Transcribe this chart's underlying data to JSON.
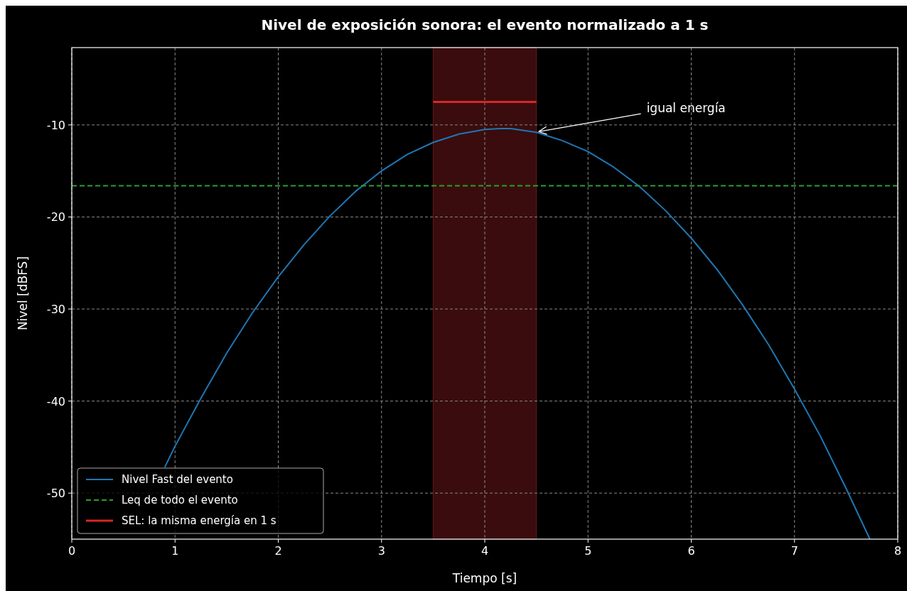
{
  "chart_data": {
    "type": "line",
    "title": "Nivel de exposición sonora: el evento normalizado a 1 s",
    "xlabel": "Tiempo [s]",
    "ylabel": "Nivel [dBFS]",
    "xlim": [
      0,
      8
    ],
    "xticks": [
      0,
      1,
      2,
      3,
      4,
      5,
      6,
      7,
      8
    ],
    "ylim": [
      -55,
      -1.6
    ],
    "yticks": [
      -50,
      -40,
      -30,
      -20,
      -10
    ],
    "grid": true,
    "legend": "bottom left",
    "series": [
      {
        "name": "Nivel Fast del evento",
        "color": "#1f77b4",
        "line_style": "solid",
        "x": [
          0.9,
          1.0,
          1.25,
          1.5,
          1.75,
          2.0,
          2.25,
          2.5,
          2.75,
          3.0,
          3.25,
          3.5,
          3.75,
          4.0,
          4.15,
          4.25,
          4.5,
          4.75,
          5.0,
          5.25,
          5.5,
          5.75,
          6.0,
          6.25,
          6.5,
          6.75,
          7.0,
          7.25,
          7.5,
          7.73
        ],
        "values": [
          -47.2,
          -44.9,
          -39.7,
          -34.8,
          -30.4,
          -26.5,
          -23.0,
          -19.9,
          -17.2,
          -15.0,
          -13.2,
          -11.9,
          -11.0,
          -10.5,
          -10.4,
          -10.4,
          -10.8,
          -11.7,
          -12.9,
          -14.6,
          -16.7,
          -19.3,
          -22.3,
          -25.7,
          -29.6,
          -33.9,
          -38.7,
          -43.8,
          -49.5,
          -55.0
        ]
      },
      {
        "name": "Leq de todo el evento",
        "color": "#2ca02c",
        "line_style": "dashed",
        "x": [
          0,
          8
        ],
        "values": [
          -16.6,
          -16.6
        ]
      },
      {
        "name": "SEL: la misma energía en 1 s",
        "color": "#d62728",
        "line_style": "solid",
        "x": [
          3.5,
          4.5
        ],
        "values": [
          -7.5,
          -7.5
        ]
      }
    ],
    "bands": [
      {
        "axis": "x",
        "from": 3.5,
        "to": 4.5,
        "color": "#3a0c0e"
      }
    ],
    "annotations": [
      {
        "text": "igual energía",
        "x": 4.5,
        "y": -10.8
      }
    ]
  }
}
